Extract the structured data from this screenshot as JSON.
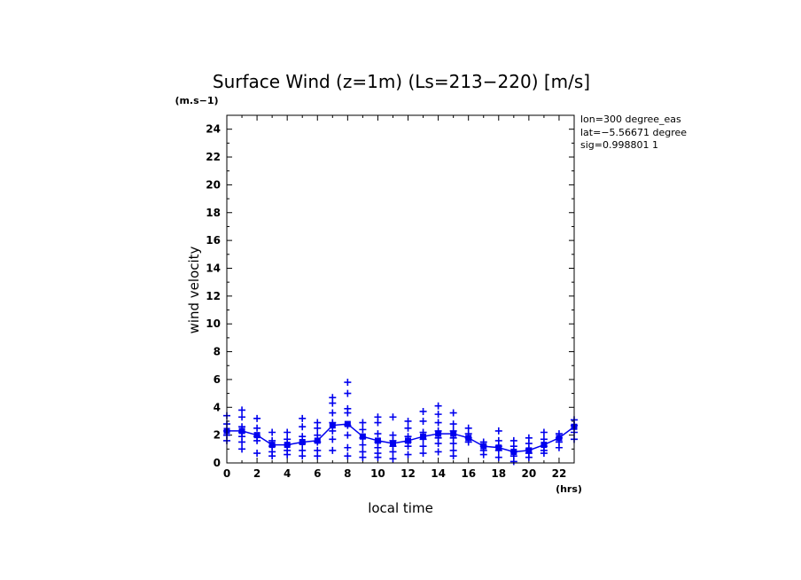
{
  "chart_data": {
    "type": "scatter",
    "title": "Surface Wind (z=1m) (Ls=213−220) [m/s]",
    "ylabel": "wind velocity",
    "xlabel": "local time",
    "y_unit": "(m.s−1)",
    "x_unit": "(hrs)",
    "xlim": [
      0,
      23
    ],
    "ylim": [
      0,
      25
    ],
    "x_ticks": [
      0,
      2,
      4,
      6,
      8,
      10,
      12,
      14,
      16,
      18,
      20,
      22
    ],
    "y_ticks": [
      0,
      2,
      4,
      6,
      8,
      10,
      12,
      14,
      16,
      18,
      20,
      22,
      24
    ],
    "info": [
      "lon=300 degree_eas",
      "lat=−5.56671 degree",
      "sig=0.998801 1"
    ],
    "colors": {
      "series": "#0000ee",
      "axes": "#000000"
    },
    "mean_line": {
      "x": [
        0,
        1,
        2,
        3,
        4,
        5,
        6,
        7,
        8,
        9,
        10,
        11,
        12,
        13,
        14,
        15,
        16,
        17,
        18,
        19,
        20,
        21,
        22,
        23
      ],
      "y": [
        2.3,
        2.3,
        2.0,
        1.3,
        1.3,
        1.5,
        1.6,
        2.7,
        2.8,
        1.9,
        1.6,
        1.4,
        1.6,
        1.9,
        2.1,
        2.1,
        1.8,
        1.2,
        1.1,
        0.8,
        0.9,
        1.3,
        1.8,
        2.6
      ]
    },
    "scatter": [
      {
        "x": 0,
        "y": [
          3.4,
          2.8,
          2.3,
          2.0,
          1.6
        ]
      },
      {
        "x": 1,
        "y": [
          3.8,
          3.3,
          2.6,
          2.2,
          1.9,
          1.5,
          1.0
        ]
      },
      {
        "x": 2,
        "y": [
          3.2,
          2.5,
          1.9,
          1.6,
          0.7
        ]
      },
      {
        "x": 3,
        "y": [
          2.2,
          1.6,
          1.2,
          0.8,
          0.5
        ]
      },
      {
        "x": 4,
        "y": [
          2.2,
          1.7,
          1.3,
          0.9,
          0.6
        ]
      },
      {
        "x": 5,
        "y": [
          3.2,
          2.6,
          1.9,
          1.4,
          0.9,
          0.5
        ]
      },
      {
        "x": 6,
        "y": [
          2.9,
          2.5,
          2.0,
          1.5,
          0.9,
          0.5
        ]
      },
      {
        "x": 7,
        "y": [
          4.7,
          4.3,
          3.6,
          2.9,
          2.3,
          1.7,
          0.9
        ]
      },
      {
        "x": 8,
        "y": [
          5.8,
          5.0,
          3.9,
          3.6,
          2.7,
          2.0,
          1.1,
          0.5
        ]
      },
      {
        "x": 9,
        "y": [
          2.9,
          2.4,
          1.8,
          1.3,
          0.8,
          0.4
        ]
      },
      {
        "x": 10,
        "y": [
          3.3,
          2.9,
          2.1,
          1.5,
          1.1,
          0.7,
          0.4
        ]
      },
      {
        "x": 11,
        "y": [
          3.3,
          2.0,
          1.6,
          1.2,
          0.8,
          0.3
        ]
      },
      {
        "x": 12,
        "y": [
          3.0,
          2.5,
          1.9,
          1.5,
          1.2,
          0.6
        ]
      },
      {
        "x": 13,
        "y": [
          3.7,
          3.0,
          2.2,
          1.7,
          1.2,
          0.7
        ]
      },
      {
        "x": 14,
        "y": [
          4.1,
          3.5,
          2.9,
          2.3,
          1.8,
          1.4,
          0.8
        ]
      },
      {
        "x": 15,
        "y": [
          3.6,
          2.8,
          2.3,
          1.8,
          1.4,
          0.9,
          0.5
        ]
      },
      {
        "x": 16,
        "y": [
          2.5,
          2.1,
          1.8,
          1.5
        ]
      },
      {
        "x": 17,
        "y": [
          1.5,
          1.2,
          0.9,
          0.6
        ]
      },
      {
        "x": 18,
        "y": [
          2.3,
          1.6,
          1.2,
          0.9,
          0.4
        ]
      },
      {
        "x": 19,
        "y": [
          1.6,
          1.2,
          0.8,
          0.5,
          0.1
        ]
      },
      {
        "x": 20,
        "y": [
          1.8,
          1.4,
          1.0,
          0.7,
          0.4
        ]
      },
      {
        "x": 21,
        "y": [
          2.2,
          1.7,
          1.2,
          0.9,
          0.7
        ]
      },
      {
        "x": 22,
        "y": [
          2.1,
          1.8,
          1.5,
          1.1
        ]
      },
      {
        "x": 23,
        "y": [
          3.1,
          2.7,
          2.2,
          1.7
        ]
      }
    ]
  }
}
